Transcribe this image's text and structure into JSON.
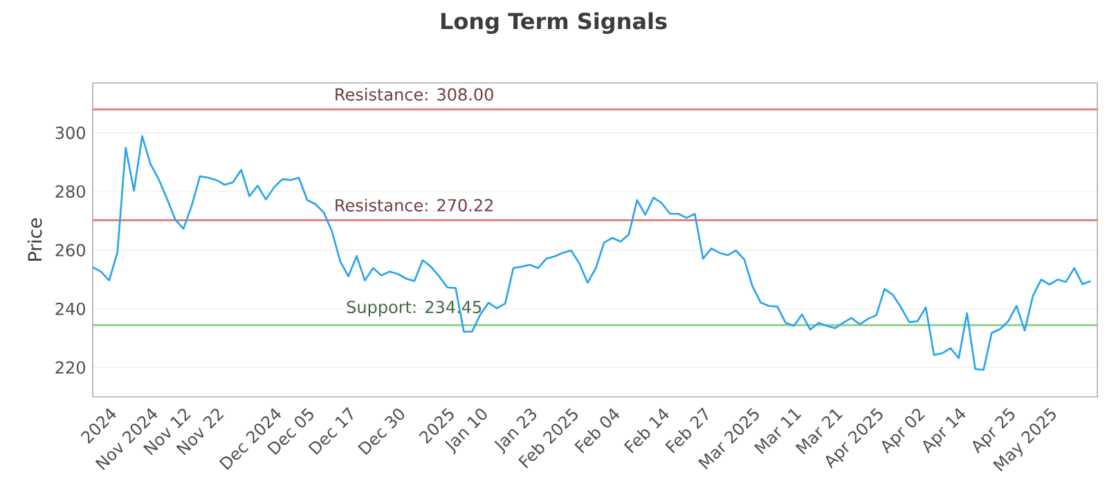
{
  "chart_data": {
    "type": "line",
    "title": "Long Term Signals",
    "ylabel": "Price",
    "categories": [
      null,
      null,
      "2024",
      null,
      null,
      null,
      null,
      "Nov 2024",
      null,
      null,
      null,
      "Nov 12",
      null,
      null,
      null,
      "Nov 22",
      null,
      null,
      null,
      null,
      null,
      null,
      "Dec 2024",
      null,
      null,
      null,
      "Dec 05",
      null,
      null,
      null,
      null,
      "Dec 17",
      null,
      null,
      null,
      null,
      null,
      "Dec 30",
      null,
      null,
      null,
      null,
      null,
      "2025",
      null,
      null,
      null,
      "Jan 10",
      null,
      null,
      null,
      null,
      null,
      "Jan 23",
      null,
      null,
      null,
      null,
      "Feb 2025",
      null,
      null,
      null,
      null,
      "Feb 04",
      null,
      null,
      null,
      null,
      null,
      "Feb 14",
      null,
      null,
      null,
      null,
      "Feb 27",
      null,
      null,
      null,
      null,
      null,
      "Mar 2025",
      null,
      null,
      null,
      null,
      "Mar 11",
      null,
      null,
      null,
      null,
      "Mar 21",
      null,
      null,
      null,
      null,
      "Apr 2025",
      null,
      null,
      null,
      null,
      "Apr 02",
      null,
      null,
      null,
      null,
      "Apr 14",
      null,
      null,
      null,
      null,
      null,
      "Apr 25",
      null,
      null,
      null,
      null,
      "May 2025",
      null,
      null,
      null,
      null,
      null
    ],
    "series": [
      {
        "color": "#2aa4ec",
        "values": [
          254.2,
          252.7,
          249.7,
          259.4,
          294.9,
          280.3,
          298.9,
          289.4,
          284.2,
          277.6,
          270.5,
          267.3,
          275.2,
          285.2,
          284.7,
          283.9,
          282.3,
          283.1,
          287.4,
          278.4,
          282,
          277.3,
          281.5,
          284.2,
          283.9,
          284.7,
          277.1,
          275.7,
          272.9,
          266.5,
          256.3,
          251.1,
          258,
          249.7,
          253.9,
          251.4,
          252.7,
          251.9,
          250.3,
          249.5,
          256.6,
          254.4,
          251.1,
          247.3,
          247.1,
          232.2,
          232.3,
          238.1,
          242.1,
          240.2,
          241.8,
          253.9,
          254.4,
          255,
          253.9,
          257.1,
          257.9,
          259.1,
          259.9,
          255.5,
          248.9,
          253.9,
          262.6,
          264.2,
          262.9,
          265.4,
          277.1,
          272.1,
          277.9,
          276,
          272.4,
          272.4,
          271,
          272.4,
          257.1,
          260.6,
          259.1,
          258.3,
          259.9,
          256.8,
          247.6,
          242.1,
          241,
          240.8,
          235.3,
          234.2,
          238.1,
          232.9,
          235.3,
          234.2,
          233.4,
          235.3,
          236.9,
          234.7,
          236.6,
          237.8,
          246.8,
          244.8,
          240.5,
          235.5,
          235.8,
          240.5,
          224.3,
          224.9,
          226.6,
          223.2,
          238.5,
          219.5,
          219.2,
          231.8,
          233.1,
          235.8,
          241,
          232.6,
          244.5,
          250,
          248.3,
          250,
          249.2,
          253.9,
          248.4,
          249.5
        ]
      }
    ],
    "ylim": [
      210,
      317
    ],
    "yticks": [
      220,
      240,
      260,
      280,
      300
    ],
    "grid": "y",
    "marker": "none",
    "line_style": "solid",
    "ref_lines": [
      {
        "axis": "y",
        "value": 308.0,
        "label": "Resistance: 308.00",
        "color": "#e08080"
      },
      {
        "axis": "y",
        "value": 270.22,
        "label": "Resistance: 270.22",
        "color": "#e08080"
      },
      {
        "axis": "y",
        "value": 234.45,
        "label": "Support: 234.45",
        "color": "#8fcf8f"
      }
    ]
  }
}
